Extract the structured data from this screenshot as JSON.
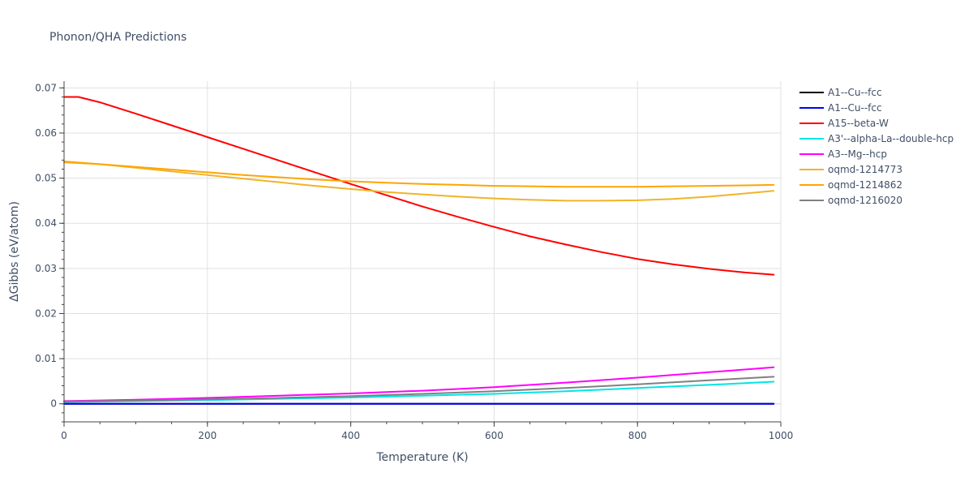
{
  "chart_data": {
    "type": "line",
    "title": "Phonon/QHA Predictions",
    "xlabel": "Temperature (K)",
    "ylabel": "ΔGibbs (eV/atom)",
    "xlim": [
      0,
      1000
    ],
    "ylim": [
      -0.004,
      0.0715
    ],
    "x_ticks": [
      0,
      200,
      400,
      600,
      800,
      1000
    ],
    "x_tick_labels": [
      "0",
      "200",
      "400",
      "600",
      "800",
      "1000"
    ],
    "y_ticks": [
      0,
      0.01,
      0.02,
      0.03,
      0.04,
      0.05,
      0.06,
      0.07
    ],
    "y_tick_labels": [
      "0",
      "0.01",
      "0.02",
      "0.03",
      "0.04",
      "0.05",
      "0.06",
      "0.07"
    ],
    "grid": true,
    "legend_position": "top-right",
    "series": [
      {
        "name": "A1--Cu--fcc",
        "color": "#000000",
        "x": [
          0,
          990
        ],
        "y": [
          0,
          0
        ]
      },
      {
        "name": "A1--Cu--fcc",
        "color": "#0000ff",
        "x": [
          0,
          990
        ],
        "y": [
          0,
          0
        ]
      },
      {
        "name": "A15--beta-W",
        "color": "#ff0000",
        "x": [
          0,
          20,
          50,
          100,
          150,
          200,
          250,
          300,
          350,
          400,
          450,
          500,
          550,
          600,
          650,
          700,
          750,
          800,
          850,
          900,
          950,
          990
        ],
        "y": [
          0.068,
          0.068,
          0.0668,
          0.0643,
          0.0617,
          0.0591,
          0.0565,
          0.0539,
          0.0513,
          0.0487,
          0.0462,
          0.0437,
          0.0414,
          0.0392,
          0.0371,
          0.0353,
          0.0336,
          0.0321,
          0.0309,
          0.0299,
          0.0291,
          0.0286
        ]
      },
      {
        "name": "A3'--alpha-La--double-hcp",
        "color": "#00e5e5",
        "x": [
          0,
          100,
          200,
          300,
          400,
          500,
          600,
          700,
          800,
          900,
          990
        ],
        "y": [
          0.0004,
          0.0006,
          0.0008,
          0.0011,
          0.0014,
          0.0018,
          0.0022,
          0.0028,
          0.0035,
          0.0042,
          0.0049
        ]
      },
      {
        "name": "A3--Mg--hcp",
        "color": "#ff00ff",
        "x": [
          0,
          100,
          200,
          300,
          400,
          500,
          600,
          700,
          800,
          900,
          990
        ],
        "y": [
          0.0006,
          0.0009,
          0.0013,
          0.0018,
          0.0023,
          0.0029,
          0.0037,
          0.0047,
          0.0058,
          0.007,
          0.0081
        ]
      },
      {
        "name": "oqmd-1214773",
        "color": "#f0b428",
        "x": [
          0,
          50,
          100,
          150,
          200,
          250,
          300,
          350,
          400,
          450,
          500,
          550,
          600,
          650,
          700,
          750,
          800,
          850,
          900,
          950,
          990
        ],
        "y": [
          0.0535,
          0.0531,
          0.0523,
          0.0515,
          0.0507,
          0.0499,
          0.0491,
          0.0483,
          0.0476,
          0.0469,
          0.0464,
          0.0459,
          0.0455,
          0.0452,
          0.045,
          0.045,
          0.0451,
          0.0454,
          0.0459,
          0.0466,
          0.0472
        ]
      },
      {
        "name": "oqmd-1214862",
        "color": "#ffa500",
        "x": [
          0,
          50,
          100,
          150,
          200,
          250,
          300,
          350,
          400,
          450,
          500,
          550,
          600,
          650,
          700,
          750,
          800,
          850,
          900,
          950,
          990
        ],
        "y": [
          0.0537,
          0.0531,
          0.0525,
          0.0519,
          0.0513,
          0.0507,
          0.0502,
          0.0497,
          0.0493,
          0.049,
          0.0487,
          0.0485,
          0.0483,
          0.0482,
          0.0481,
          0.0481,
          0.0481,
          0.0482,
          0.0483,
          0.0484,
          0.0485
        ]
      },
      {
        "name": "oqmd-1216020",
        "color": "#808080",
        "x": [
          0,
          100,
          200,
          300,
          400,
          500,
          600,
          700,
          800,
          900,
          990
        ],
        "y": [
          0.0005,
          0.0007,
          0.001,
          0.0013,
          0.0017,
          0.0022,
          0.0028,
          0.0035,
          0.0043,
          0.0052,
          0.006
        ]
      }
    ]
  }
}
